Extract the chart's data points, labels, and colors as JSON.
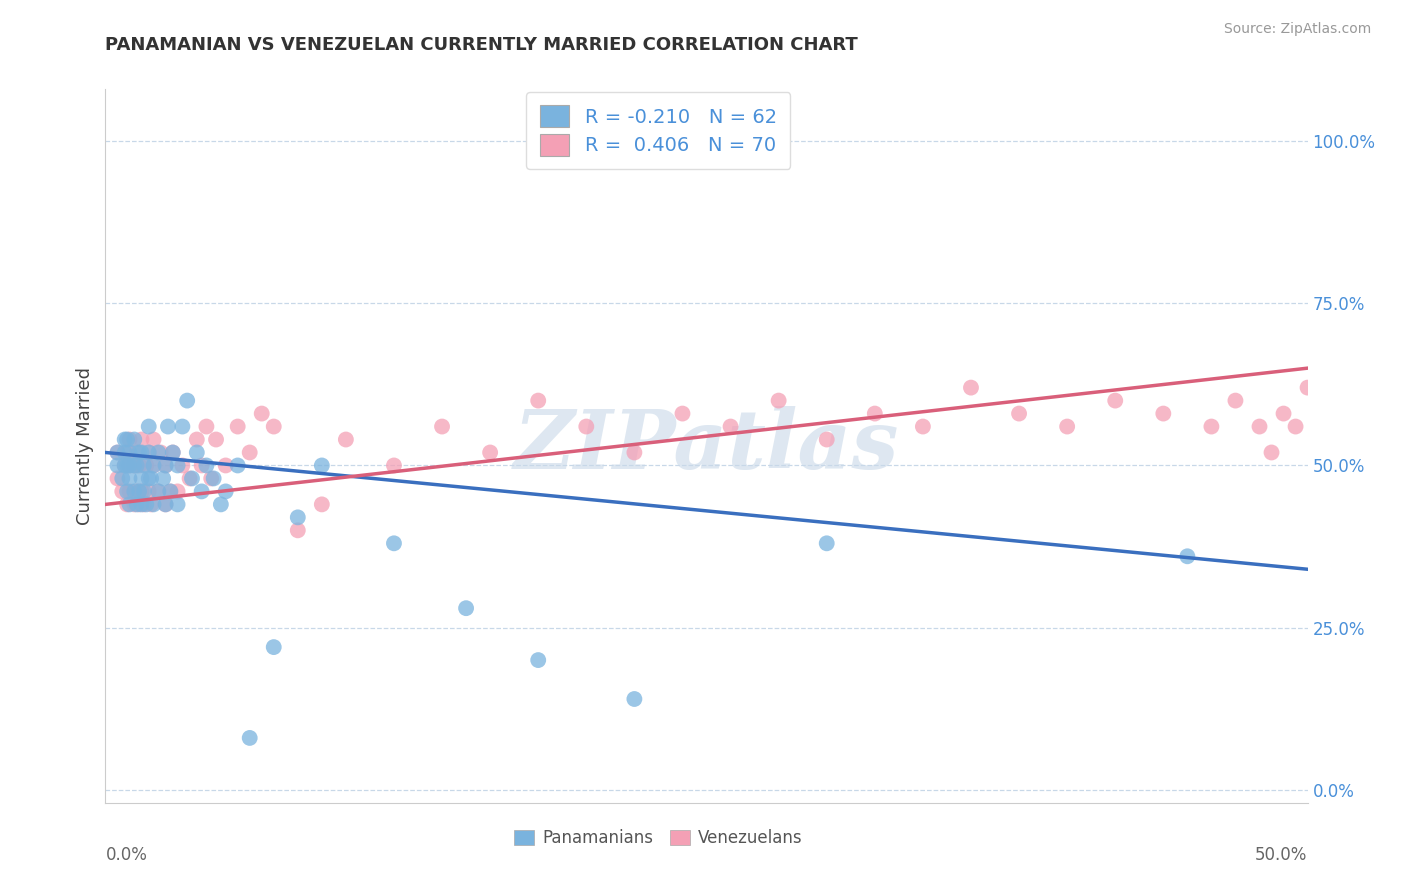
{
  "title": "PANAMANIAN VS VENEZUELAN CURRENTLY MARRIED CORRELATION CHART",
  "source_text": "Source: ZipAtlas.com",
  "ylabel": "Currently Married",
  "right_yticks": [
    0.0,
    0.25,
    0.5,
    0.75,
    1.0
  ],
  "right_yticklabels": [
    "0.0%",
    "25.0%",
    "50.0%",
    "75.0%",
    "100.0%"
  ],
  "xlim": [
    0.0,
    0.5
  ],
  "ylim": [
    -0.02,
    1.08
  ],
  "blue_color": "#7ab3de",
  "pink_color": "#f4a0b5",
  "blue_line_color": "#3a6fbf",
  "pink_line_color": "#d95f7a",
  "watermark_text": "ZIPatlas",
  "background_color": "#ffffff",
  "grid_color": "#c8d8e8",
  "blue_line_x0": 0.0,
  "blue_line_y0": 0.52,
  "blue_line_x1": 0.5,
  "blue_line_y1": 0.34,
  "pink_line_x0": 0.0,
  "pink_line_y0": 0.44,
  "pink_line_x1": 0.5,
  "pink_line_y1": 0.65,
  "blue_scatter_x": [
    0.005,
    0.005,
    0.007,
    0.008,
    0.008,
    0.008,
    0.009,
    0.009,
    0.009,
    0.01,
    0.01,
    0.01,
    0.01,
    0.012,
    0.012,
    0.012,
    0.013,
    0.013,
    0.014,
    0.014,
    0.015,
    0.015,
    0.015,
    0.016,
    0.016,
    0.017,
    0.018,
    0.018,
    0.018,
    0.019,
    0.02,
    0.02,
    0.022,
    0.022,
    0.024,
    0.025,
    0.025,
    0.026,
    0.027,
    0.028,
    0.03,
    0.03,
    0.032,
    0.034,
    0.036,
    0.038,
    0.04,
    0.042,
    0.045,
    0.048,
    0.05,
    0.055,
    0.06,
    0.07,
    0.08,
    0.09,
    0.12,
    0.15,
    0.18,
    0.22,
    0.3,
    0.45
  ],
  "blue_scatter_y": [
    0.5,
    0.52,
    0.48,
    0.5,
    0.52,
    0.54,
    0.46,
    0.5,
    0.54,
    0.44,
    0.48,
    0.5,
    0.52,
    0.46,
    0.5,
    0.54,
    0.44,
    0.5,
    0.46,
    0.52,
    0.44,
    0.48,
    0.52,
    0.46,
    0.5,
    0.44,
    0.48,
    0.52,
    0.56,
    0.48,
    0.44,
    0.5,
    0.46,
    0.52,
    0.48,
    0.44,
    0.5,
    0.56,
    0.46,
    0.52,
    0.44,
    0.5,
    0.56,
    0.6,
    0.48,
    0.52,
    0.46,
    0.5,
    0.48,
    0.44,
    0.46,
    0.5,
    0.08,
    0.22,
    0.42,
    0.5,
    0.38,
    0.28,
    0.2,
    0.14,
    0.38,
    0.36
  ],
  "pink_scatter_x": [
    0.005,
    0.005,
    0.007,
    0.008,
    0.009,
    0.009,
    0.01,
    0.01,
    0.01,
    0.012,
    0.012,
    0.013,
    0.013,
    0.014,
    0.014,
    0.015,
    0.015,
    0.016,
    0.017,
    0.018,
    0.018,
    0.019,
    0.02,
    0.02,
    0.022,
    0.023,
    0.025,
    0.025,
    0.027,
    0.028,
    0.03,
    0.032,
    0.035,
    0.038,
    0.04,
    0.042,
    0.044,
    0.046,
    0.05,
    0.055,
    0.06,
    0.065,
    0.07,
    0.08,
    0.09,
    0.1,
    0.12,
    0.14,
    0.16,
    0.18,
    0.2,
    0.22,
    0.24,
    0.26,
    0.28,
    0.3,
    0.32,
    0.34,
    0.36,
    0.38,
    0.4,
    0.42,
    0.44,
    0.46,
    0.47,
    0.48,
    0.485,
    0.49,
    0.495,
    0.5
  ],
  "pink_scatter_y": [
    0.48,
    0.52,
    0.46,
    0.5,
    0.44,
    0.52,
    0.46,
    0.5,
    0.54,
    0.44,
    0.5,
    0.46,
    0.52,
    0.44,
    0.5,
    0.46,
    0.54,
    0.44,
    0.5,
    0.46,
    0.52,
    0.44,
    0.5,
    0.54,
    0.46,
    0.52,
    0.44,
    0.5,
    0.46,
    0.52,
    0.46,
    0.5,
    0.48,
    0.54,
    0.5,
    0.56,
    0.48,
    0.54,
    0.5,
    0.56,
    0.52,
    0.58,
    0.56,
    0.4,
    0.44,
    0.54,
    0.5,
    0.56,
    0.52,
    0.6,
    0.56,
    0.52,
    0.58,
    0.56,
    0.6,
    0.54,
    0.58,
    0.56,
    0.62,
    0.58,
    0.56,
    0.6,
    0.58,
    0.56,
    0.6,
    0.56,
    0.52,
    0.58,
    0.56,
    0.62
  ]
}
